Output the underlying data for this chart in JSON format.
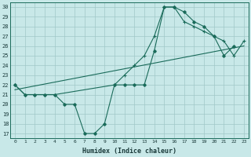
{
  "xlabel": "Humidex (Indice chaleur)",
  "background_color": "#c8e8e8",
  "grid_color": "#a0c8c8",
  "line_color": "#1a6b5a",
  "xlim": [
    -0.5,
    23.5
  ],
  "ylim": [
    16.5,
    30.5
  ],
  "xticks": [
    0,
    1,
    2,
    3,
    4,
    5,
    6,
    7,
    8,
    9,
    10,
    11,
    12,
    13,
    14,
    15,
    16,
    17,
    18,
    19,
    20,
    21,
    22,
    23
  ],
  "yticks": [
    17,
    18,
    19,
    20,
    21,
    22,
    23,
    24,
    25,
    26,
    27,
    28,
    29,
    30
  ],
  "line1_x": [
    0,
    23
  ],
  "line1_y": [
    21.5,
    26.0
  ],
  "line2_x": [
    0,
    1,
    2,
    3,
    4,
    5,
    6,
    7,
    8,
    9,
    10,
    11,
    12,
    13,
    14,
    15,
    16,
    17,
    18,
    19,
    20,
    21,
    22
  ],
  "line2_y": [
    22,
    21,
    21,
    21,
    21,
    20,
    20,
    17,
    17,
    18,
    22,
    22,
    22,
    22,
    25.5,
    30,
    30,
    29.5,
    28.5,
    28,
    27,
    25,
    26
  ],
  "line3_x": [
    0,
    1,
    2,
    3,
    4,
    10,
    11,
    12,
    13,
    14,
    15,
    16,
    17,
    18,
    19,
    20,
    21,
    22,
    23
  ],
  "line3_y": [
    22,
    21,
    21,
    21,
    21,
    22,
    23,
    24,
    25,
    27,
    30,
    30,
    28.5,
    28,
    27.5,
    27,
    26.5,
    25,
    26.5
  ]
}
